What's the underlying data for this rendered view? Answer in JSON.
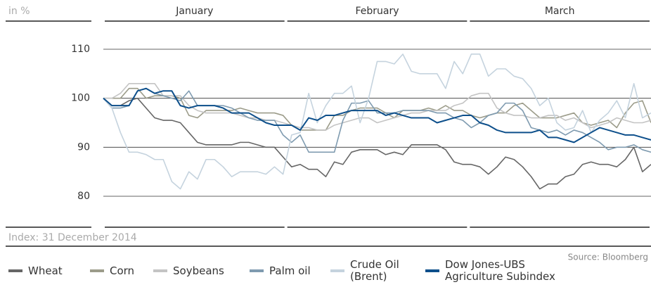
{
  "chart_data": {
    "type": "line",
    "unit_label": "in %",
    "note": "Index: 31 December 2014",
    "source": "Source: Bloomberg",
    "months": [
      "January",
      "February",
      "March"
    ],
    "ylim": [
      80,
      110
    ],
    "yticks": [
      80,
      90,
      100,
      110
    ],
    "grid": true,
    "series": [
      {
        "name": "Wheat",
        "color": "#666666",
        "values": [
          100,
          98.5,
          98.5,
          99.5,
          100,
          98,
          96,
          95.5,
          95.5,
          95,
          93,
          91,
          90.5,
          90.5,
          90.5,
          90.5,
          91,
          91,
          90.5,
          90,
          90,
          88,
          86,
          86.5,
          85.5,
          85.5,
          84,
          87,
          86.5,
          89,
          89.5,
          89.5,
          89.5,
          88.5,
          89,
          88.5,
          90.5,
          90.5,
          90.5,
          90.5,
          89.5,
          87,
          86.5,
          86.5,
          86,
          84.5,
          86,
          88,
          87.5,
          86,
          84,
          81.5,
          82.5,
          82.5,
          84,
          84.5,
          86.5,
          87,
          86.5,
          86.5,
          86,
          87.5,
          90,
          85,
          86.5
        ]
      },
      {
        "name": "Corn",
        "color": "#9c9c8a",
        "values": [
          100,
          100,
          100,
          102,
          102,
          100,
          100.5,
          100.5,
          100.5,
          100,
          96.5,
          96,
          97.5,
          97.5,
          97.5,
          97.5,
          98,
          97.5,
          97,
          97,
          97,
          96.5,
          94.5,
          93.5,
          93.5,
          93.5,
          93.5,
          96.5,
          96.5,
          97.5,
          98,
          98,
          98,
          97,
          96,
          97.5,
          97.5,
          97.5,
          98,
          97.5,
          98.5,
          97.5,
          97.5,
          96.5,
          96,
          96.5,
          97,
          97,
          98.5,
          99,
          97.5,
          96,
          96,
          96,
          96.5,
          97,
          95,
          94.5,
          95,
          95.5,
          94,
          97,
          99,
          99.5,
          95
        ]
      },
      {
        "name": "Soybeans",
        "color": "#c4c4c4",
        "values": [
          100,
          100,
          101,
          103,
          103,
          103,
          103,
          100.5,
          100.5,
          100.5,
          98.5,
          97.5,
          97,
          97,
          97,
          97,
          96.5,
          96,
          96,
          95.5,
          95.5,
          95,
          94.5,
          94,
          94,
          93.5,
          93.5,
          94.5,
          95,
          95.5,
          96,
          96,
          95,
          95.5,
          96,
          96.5,
          97,
          97,
          97.5,
          97.5,
          97.5,
          98.5,
          99,
          100.5,
          101,
          101,
          98,
          97,
          96.5,
          96.5,
          96,
          96,
          96.5,
          96.5,
          95.5,
          96,
          95,
          94,
          94.5,
          95,
          96,
          95.5,
          95,
          95,
          95.5
        ]
      },
      {
        "name": "Palm oil",
        "color": "#7f9bb0",
        "values": [
          100,
          98,
          98,
          98.5,
          101.5,
          102,
          101,
          100.5,
          100,
          99.5,
          101.5,
          98.5,
          98.5,
          98.5,
          98.5,
          98,
          97,
          96,
          95.5,
          95.5,
          95.5,
          92.5,
          91,
          92.5,
          89,
          89,
          89,
          89,
          95.5,
          99,
          99,
          99.5,
          97,
          97,
          97,
          97.5,
          97.5,
          97.5,
          97.5,
          97,
          97,
          96,
          95.5,
          94,
          95,
          96.5,
          97,
          99,
          99,
          97.5,
          94,
          93.5,
          93,
          93.5,
          92.5,
          93.5,
          93,
          92,
          91,
          89.5,
          90,
          90,
          90.5,
          89.5,
          89
        ]
      },
      {
        "name": "Crude Oil (Brent)",
        "color": "#c5d3de",
        "values": [
          100,
          98,
          93,
          89,
          89,
          88.5,
          87.5,
          87.5,
          83,
          81.5,
          85,
          83.5,
          87.5,
          87.5,
          86,
          84,
          85,
          85,
          85,
          84.5,
          86,
          84.5,
          92.5,
          93,
          101,
          95,
          98.5,
          101,
          101,
          102.5,
          95,
          100,
          107.5,
          107.5,
          107,
          109,
          105.5,
          105,
          105,
          105,
          102,
          107.5,
          105,
          109,
          109,
          104.5,
          106,
          106,
          104.5,
          104,
          102,
          98.5,
          100,
          95,
          93.5,
          94,
          97.5,
          93,
          95.5,
          97,
          99.5,
          96,
          103,
          96,
          97
        ]
      },
      {
        "name": "Dow Jones-UBS Agriculture Subindex",
        "color": "#0d4f8b",
        "values": [
          100,
          98.5,
          98.5,
          98.5,
          101.5,
          102,
          101,
          101.5,
          101.5,
          98.5,
          98,
          98.5,
          98.5,
          98.5,
          98,
          97,
          97,
          97,
          96,
          95,
          94.5,
          94.5,
          94.5,
          93.5,
          96,
          95.5,
          96.5,
          96.5,
          97,
          97.5,
          97.5,
          97.5,
          97.5,
          96.5,
          97,
          96.5,
          96,
          96,
          96,
          95,
          95.5,
          96,
          96.5,
          96.5,
          95,
          94.5,
          93.5,
          93,
          93,
          93,
          93,
          93.5,
          92,
          92,
          91.5,
          91,
          92,
          93,
          94,
          93.5,
          93,
          92.5,
          92.5,
          92,
          91.5
        ]
      }
    ]
  }
}
